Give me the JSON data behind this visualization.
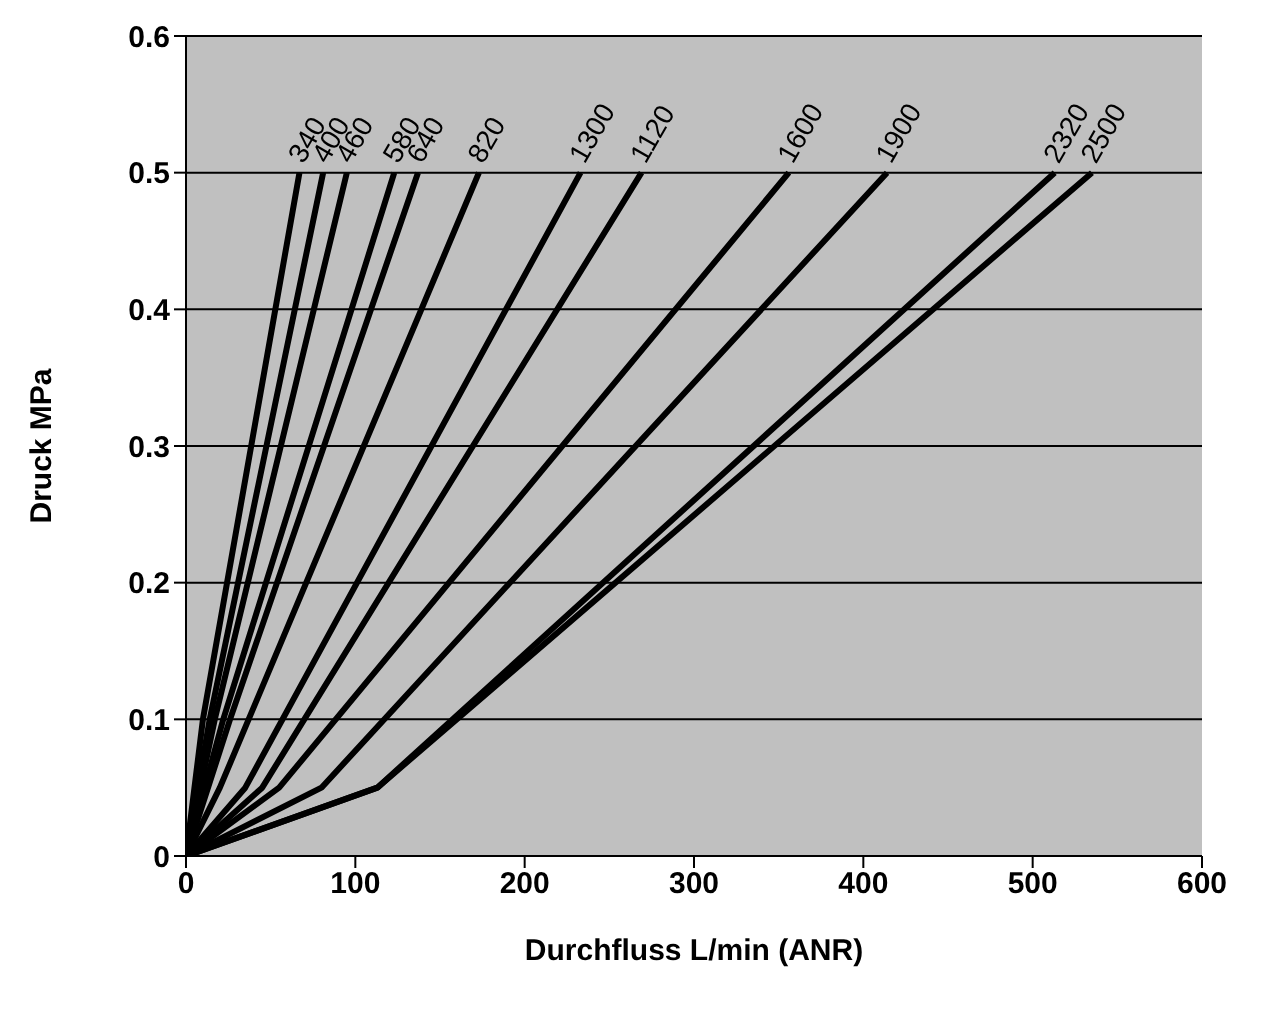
{
  "chart_data": {
    "type": "line",
    "xlabel": "Durchfluss L/min (ANR)",
    "ylabel": "Druck MPa",
    "xlim": [
      0,
      600
    ],
    "xticks": [
      0,
      100,
      200,
      300,
      400,
      500,
      600
    ],
    "ylim": [
      0,
      0.6
    ],
    "yticks": [
      0,
      0.1,
      0.2,
      0.3,
      0.4,
      0.5,
      0.6
    ],
    "grid": "y",
    "marker": "none",
    "line_style": "solid",
    "legend": false,
    "series": [
      {
        "name": "340",
        "color": "#000000",
        "x": [
          0,
          10,
          67
        ],
        "values": [
          0,
          0.1,
          0.5
        ]
      },
      {
        "name": "400",
        "color": "#000000",
        "x": [
          0,
          14,
          81
        ],
        "values": [
          0,
          0.1,
          0.5
        ]
      },
      {
        "name": "460",
        "color": "#000000",
        "x": [
          0,
          17,
          95
        ],
        "values": [
          0,
          0.1,
          0.5
        ]
      },
      {
        "name": "580",
        "color": "#000000",
        "x": [
          0,
          22,
          123
        ],
        "values": [
          0,
          0.1,
          0.5
        ]
      },
      {
        "name": "640",
        "color": "#000000",
        "x": [
          0,
          26,
          137
        ],
        "values": [
          0,
          0.1,
          0.5
        ]
      },
      {
        "name": "820",
        "color": "#000000",
        "x": [
          0,
          20,
          173
        ],
        "values": [
          0,
          0.05,
          0.5
        ]
      },
      {
        "name": "1300",
        "color": "#000000",
        "x": [
          0,
          35,
          233
        ],
        "values": [
          0,
          0.05,
          0.5
        ]
      },
      {
        "name": "1120",
        "color": "#000000",
        "x": [
          0,
          45,
          269
        ],
        "values": [
          0,
          0.05,
          0.5
        ]
      },
      {
        "name": "1600",
        "color": "#000000",
        "x": [
          0,
          55,
          356
        ],
        "values": [
          0,
          0.05,
          0.5
        ]
      },
      {
        "name": "1900",
        "color": "#000000",
        "x": [
          0,
          80,
          414
        ],
        "values": [
          0,
          0.05,
          0.5
        ]
      },
      {
        "name": "2320",
        "color": "#000000",
        "x": [
          0,
          113,
          513
        ],
        "values": [
          0,
          0.05,
          0.5
        ]
      },
      {
        "name": "2500",
        "color": "#000000",
        "x": [
          0,
          113,
          535
        ],
        "values": [
          0,
          0.05,
          0.5
        ]
      }
    ]
  }
}
